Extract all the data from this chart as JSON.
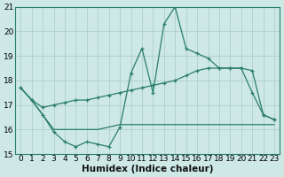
{
  "x": [
    0,
    1,
    2,
    3,
    4,
    5,
    6,
    7,
    8,
    9,
    10,
    11,
    12,
    13,
    14,
    15,
    16,
    17,
    18,
    19,
    20,
    21,
    22,
    23
  ],
  "line1": [
    17.7,
    17.2,
    16.6,
    15.9,
    15.5,
    15.3,
    15.5,
    15.4,
    15.3,
    16.1,
    18.3,
    19.3,
    17.5,
    20.3,
    21.0,
    19.3,
    19.1,
    18.9,
    18.5,
    18.5,
    18.5,
    17.5,
    16.6,
    16.4
  ],
  "line2": [
    17.7,
    17.2,
    16.9,
    17.0,
    17.1,
    17.2,
    17.2,
    17.3,
    17.4,
    17.5,
    17.6,
    17.7,
    17.8,
    17.9,
    18.0,
    18.2,
    18.4,
    18.5,
    18.5,
    18.5,
    18.5,
    18.4,
    16.6,
    16.4
  ],
  "line3": [
    17.7,
    17.2,
    16.6,
    16.0,
    16.0,
    16.0,
    16.0,
    16.0,
    16.1,
    16.2,
    16.2,
    16.2,
    16.2,
    16.2,
    16.2,
    16.2,
    16.2,
    16.2,
    16.2,
    16.2,
    16.2,
    16.2,
    16.2,
    16.2
  ],
  "bg_color": "#cde8e5",
  "grid_color": "#afd0cd",
  "line_color": "#2a7d6e",
  "xlabel": "Humidex (Indice chaleur)",
  "xlim": [
    -0.5,
    23.5
  ],
  "ylim": [
    15,
    21
  ],
  "yticks": [
    15,
    16,
    17,
    18,
    19,
    20,
    21
  ],
  "xticks": [
    0,
    1,
    2,
    3,
    4,
    5,
    6,
    7,
    8,
    9,
    10,
    11,
    12,
    13,
    14,
    15,
    16,
    17,
    18,
    19,
    20,
    21,
    22,
    23
  ],
  "xlabel_fontsize": 7.5,
  "tick_fontsize": 6.5
}
